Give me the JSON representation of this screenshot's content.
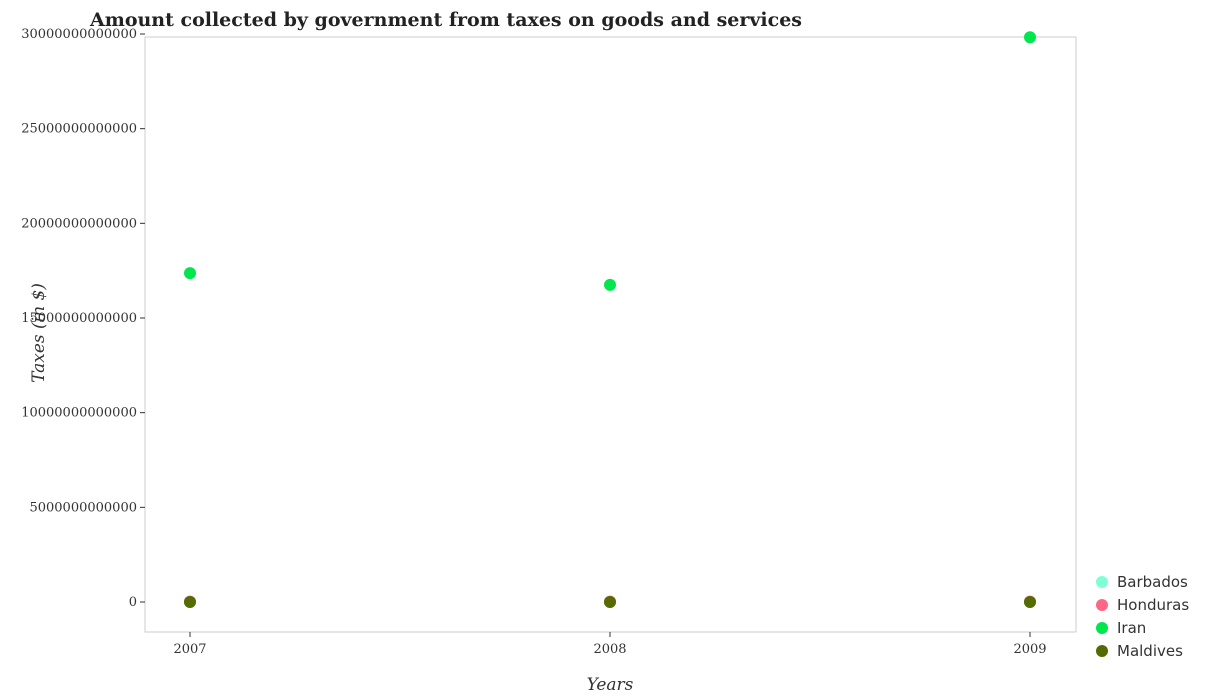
{
  "chart_data": {
    "type": "scatter",
    "title": "Amount collected by government from taxes on goods and services",
    "xlabel": "Years",
    "ylabel": "Taxes (in $)",
    "categories": [
      "2007",
      "2008",
      "2009"
    ],
    "ylim": [
      0,
      31000000000000
    ],
    "yticks": [
      0,
      5000000000000,
      10000000000000,
      15000000000000,
      20000000000000,
      25000000000000,
      30000000000000
    ],
    "ytick_labels": [
      "0",
      "5000000000000",
      "10000000000000",
      "15000000000000",
      "20000000000000",
      "25000000000000",
      "30000000000000"
    ],
    "grid": false,
    "legend_position": "bottom-right",
    "series": [
      {
        "name": "Barbados",
        "color": "#7fffd4",
        "values": [
          1000000000,
          1000000000,
          1000000000
        ]
      },
      {
        "name": "Honduras",
        "color": "#ff6685",
        "values": [
          20000000000,
          22000000000,
          21000000000
        ]
      },
      {
        "name": "Iran",
        "color": "#00e64d",
        "values": [
          17370000000000,
          16750000000000,
          29830000000000
        ]
      },
      {
        "name": "Maldives",
        "color": "#556b00",
        "values": [
          2000000000,
          2500000000,
          2200000000
        ]
      }
    ]
  }
}
